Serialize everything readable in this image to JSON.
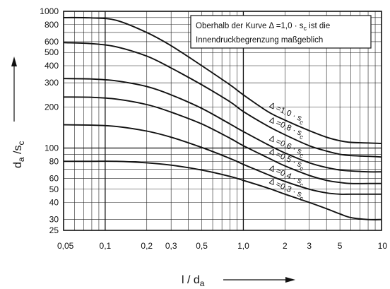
{
  "chart_data": {
    "type": "line",
    "x_scale": "log",
    "y_scale": "log",
    "xlim": [
      0.05,
      10
    ],
    "ylim": [
      25,
      1000
    ],
    "grid": true,
    "xlabel": {
      "main": "l / d",
      "sub": "a"
    },
    "ylabel": {
      "main": "d",
      "sub1": "a",
      "mid": " /s",
      "sub2": "c"
    },
    "x_ticks": [
      {
        "value": 0.05,
        "label": "0,05"
      },
      {
        "value": 0.1,
        "label": "0,1"
      },
      {
        "value": 0.2,
        "label": "0,2"
      },
      {
        "value": 0.3,
        "label": "0,3"
      },
      {
        "value": 0.5,
        "label": "0,5"
      },
      {
        "value": 1.0,
        "label": "1,0"
      },
      {
        "value": 2,
        "label": "2"
      },
      {
        "value": 3,
        "label": "3"
      },
      {
        "value": 5,
        "label": "5"
      },
      {
        "value": 10,
        "label": "10"
      }
    ],
    "y_ticks": [
      {
        "value": 25,
        "label": "25"
      },
      {
        "value": 30,
        "label": "30"
      },
      {
        "value": 40,
        "label": "40"
      },
      {
        "value": 50,
        "label": "50"
      },
      {
        "value": 60,
        "label": "60"
      },
      {
        "value": 80,
        "label": "80"
      },
      {
        "value": 100,
        "label": "100"
      },
      {
        "value": 200,
        "label": "200"
      },
      {
        "value": 300,
        "label": "300"
      },
      {
        "value": 400,
        "label": "400"
      },
      {
        "value": 500,
        "label": "500"
      },
      {
        "value": 600,
        "label": "600"
      },
      {
        "value": 800,
        "label": "800"
      },
      {
        "value": 1000,
        "label": "1000"
      }
    ],
    "annotation": {
      "line1": "Oberhalb der Kurve Δ =1,0 · s",
      "line1_sub": "c",
      "line1_tail": "  ist die",
      "line2": "Innendruckbegrenzung  maßgeblich"
    },
    "series": [
      {
        "name": "Δ =1,0 · s",
        "sub": "c",
        "x": [
          0.05,
          0.08,
          0.12,
          0.2,
          0.3,
          0.5,
          0.8,
          1.0,
          1.5,
          2,
          3,
          4,
          5,
          6,
          8,
          10
        ],
        "y": [
          900,
          895,
          860,
          700,
          560,
          400,
          290,
          245,
          185,
          160,
          134,
          120,
          113,
          110,
          109,
          108
        ]
      },
      {
        "name": "Δ =0,8 · s",
        "sub": "c",
        "x": [
          0.05,
          0.08,
          0.12,
          0.2,
          0.3,
          0.5,
          0.8,
          1.0,
          1.5,
          2,
          3,
          4,
          5,
          6,
          8,
          10
        ],
        "y": [
          590,
          580,
          550,
          470,
          385,
          290,
          218,
          185,
          145,
          125,
          104,
          95,
          90,
          88,
          87,
          86
        ]
      },
      {
        "name": "Δ =0,6 · s",
        "sub": "c",
        "x": [
          0.05,
          0.08,
          0.12,
          0.2,
          0.3,
          0.5,
          0.8,
          1.0,
          1.5,
          2,
          3,
          4,
          5,
          6,
          8,
          10
        ],
        "y": [
          322,
          320,
          310,
          282,
          245,
          195,
          150,
          132,
          106,
          92,
          78,
          72,
          69,
          68,
          67,
          67
        ]
      },
      {
        "name": "Δ =0,5 · s",
        "sub": "c",
        "x": [
          0.05,
          0.08,
          0.12,
          0.2,
          0.3,
          0.5,
          0.8,
          1.0,
          1.5,
          2,
          3,
          4,
          5,
          6,
          8,
          10
        ],
        "y": [
          236,
          235,
          228,
          208,
          183,
          150,
          118,
          104,
          85,
          74,
          63,
          58,
          56,
          55,
          55,
          55
        ]
      },
      {
        "name": "Δ =0,4 · s",
        "sub": "c",
        "x": [
          0.05,
          0.08,
          0.12,
          0.2,
          0.3,
          0.5,
          0.8,
          1.0,
          1.5,
          2,
          3,
          4,
          5,
          6,
          8,
          10
        ],
        "y": [
          148,
          147,
          144,
          133,
          120,
          101,
          84,
          76,
          64,
          57,
          50,
          47,
          46,
          46,
          46,
          46
        ]
      },
      {
        "name": "Δ =0,3 · s",
        "sub": "c",
        "x": [
          0.05,
          0.08,
          0.12,
          0.2,
          0.3,
          0.5,
          0.8,
          1.0,
          1.5,
          2,
          3,
          4,
          5,
          6,
          8,
          10
        ],
        "y": [
          80,
          80,
          80,
          78,
          75,
          69,
          62,
          58,
          51,
          46,
          40,
          36,
          33,
          31,
          30,
          30
        ]
      }
    ]
  }
}
